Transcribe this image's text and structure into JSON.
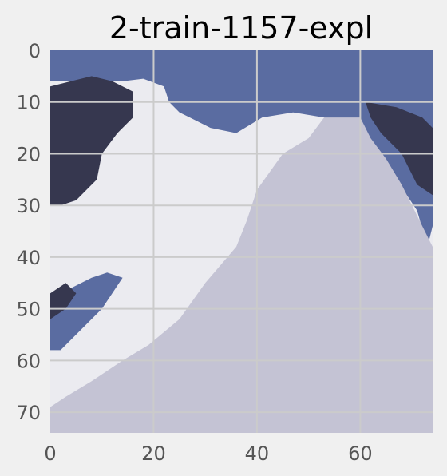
{
  "chart_data": {
    "type": "heatmap",
    "title": "2-train-1157-expl",
    "xlabel": "",
    "ylabel": "",
    "xlim": [
      0,
      74
    ],
    "ylim": [
      74,
      0
    ],
    "x_ticks": [
      0,
      20,
      40,
      60
    ],
    "y_ticks": [
      0,
      10,
      20,
      30,
      40,
      50,
      60,
      70
    ],
    "grid": true,
    "grid_color": "#cbcbcb",
    "colors": {
      "background": "#f0f0f0",
      "dark": "#36374f",
      "blue": "#5a6ca1",
      "light": "#ebebf0",
      "medium": "#c4c3d4"
    },
    "regions": [
      {
        "name": "blue",
        "points": [
          [
            0,
            0
          ],
          [
            74,
            0
          ],
          [
            74,
            34
          ],
          [
            73,
            38
          ],
          [
            71,
            31
          ],
          [
            67,
            25
          ],
          [
            62,
            20
          ],
          [
            57,
            16
          ],
          [
            53,
            13
          ],
          [
            47,
            12
          ],
          [
            41,
            13
          ],
          [
            36,
            16
          ],
          [
            31,
            15
          ],
          [
            27,
            13
          ],
          [
            25,
            12
          ],
          [
            23,
            10
          ],
          [
            22,
            7
          ],
          [
            18,
            5.5
          ],
          [
            14,
            6
          ],
          [
            11,
            6
          ],
          [
            8,
            6
          ],
          [
            0,
            6
          ]
        ]
      },
      {
        "name": "blue",
        "points": [
          [
            0,
            48
          ],
          [
            4,
            46
          ],
          [
            8,
            44
          ],
          [
            11,
            43
          ],
          [
            14,
            44
          ],
          [
            10,
            50
          ],
          [
            6,
            54
          ],
          [
            2,
            58
          ],
          [
            0,
            58
          ]
        ]
      },
      {
        "name": "dark",
        "points": [
          [
            0,
            7
          ],
          [
            4,
            6
          ],
          [
            8,
            5
          ],
          [
            12,
            6
          ],
          [
            16,
            8
          ],
          [
            16,
            13
          ],
          [
            13,
            16
          ],
          [
            10,
            20
          ],
          [
            9,
            25
          ],
          [
            7,
            27
          ],
          [
            5,
            29
          ],
          [
            2,
            30
          ],
          [
            0,
            30
          ]
        ]
      },
      {
        "name": "dark",
        "points": [
          [
            61,
            10
          ],
          [
            67,
            11
          ],
          [
            72,
            13
          ],
          [
            74,
            15
          ],
          [
            74,
            28
          ],
          [
            71,
            26
          ],
          [
            68,
            20
          ],
          [
            64,
            16
          ],
          [
            62,
            13
          ]
        ]
      },
      {
        "name": "dark",
        "points": [
          [
            0,
            47
          ],
          [
            3,
            45
          ],
          [
            5,
            47
          ],
          [
            3,
            50
          ],
          [
            0,
            52
          ]
        ]
      },
      {
        "name": "medium",
        "points": [
          [
            74,
            38
          ],
          [
            71,
            32
          ],
          [
            68,
            26
          ],
          [
            65,
            21
          ],
          [
            62,
            17
          ],
          [
            60,
            13
          ],
          [
            57,
            13
          ],
          [
            53,
            13
          ],
          [
            50,
            17
          ],
          [
            45,
            20
          ],
          [
            40,
            27
          ],
          [
            38,
            33
          ],
          [
            36,
            38
          ],
          [
            30,
            45
          ],
          [
            25,
            52
          ],
          [
            19,
            57
          ],
          [
            14,
            60
          ],
          [
            8,
            64
          ],
          [
            3,
            67
          ],
          [
            0,
            69
          ],
          [
            0,
            74
          ],
          [
            74,
            74
          ]
        ]
      }
    ]
  }
}
